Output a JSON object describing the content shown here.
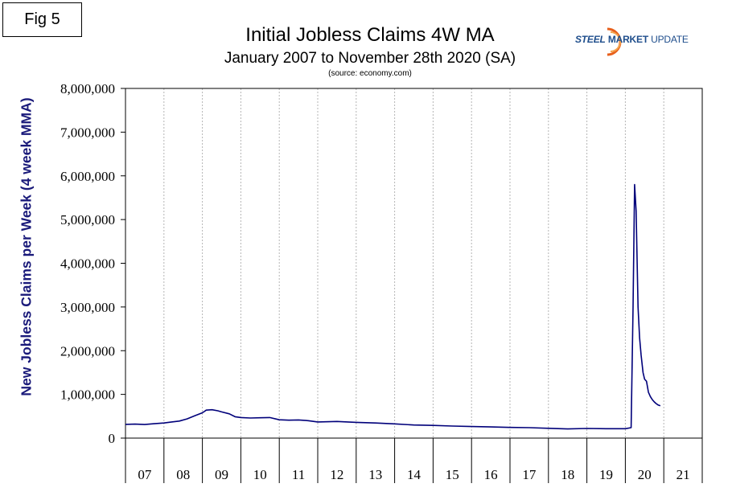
{
  "fig_label": "Fig 5",
  "logo": {
    "steel": "STEEL",
    "market": "MARKET",
    "update": "UPDATE"
  },
  "chart_data": {
    "type": "line",
    "title": "Initial Jobless Claims 4W MA",
    "subtitle": "January 2007 to November 28th 2020 (SA)",
    "source": "(source: economy.com)",
    "ylabel": "New Jobless Claims per Week (4 week MMA)",
    "xlabel": "",
    "ylim": [
      0,
      8000000
    ],
    "xlim": [
      2007.0,
      2022.0
    ],
    "grid": {
      "x": true,
      "y": false
    },
    "y_ticks": [
      0,
      1000000,
      2000000,
      3000000,
      4000000,
      5000000,
      6000000,
      7000000,
      8000000
    ],
    "y_tick_labels": [
      "0",
      "1,000,000",
      "2,000,000",
      "3,000,000",
      "4,000,000",
      "5,000,000",
      "6,000,000",
      "7,000,000",
      "8,000,000"
    ],
    "x_tick_labels": [
      "07",
      "08",
      "09",
      "10",
      "11",
      "12",
      "13",
      "14",
      "15",
      "16",
      "17",
      "18",
      "19",
      "20",
      "21"
    ],
    "line_color": "#00007a",
    "series": [
      {
        "x": [
          2007.0,
          2007.25,
          2007.5,
          2007.75,
          2008.0,
          2008.2,
          2008.4,
          2008.6,
          2008.8,
          2009.0,
          2009.1,
          2009.25,
          2009.4,
          2009.5,
          2009.7,
          2009.85,
          2010.0,
          2010.25,
          2010.5,
          2010.75,
          2011.0,
          2011.25,
          2011.5,
          2011.75,
          2012.0,
          2012.5,
          2013.0,
          2013.5,
          2014.0,
          2014.5,
          2015.0,
          2015.5,
          2016.0,
          2016.5,
          2017.0,
          2017.5,
          2018.0,
          2018.5,
          2019.0,
          2019.5,
          2020.0,
          2020.15,
          2020.2,
          2020.24,
          2020.28,
          2020.33,
          2020.37,
          2020.41,
          2020.46,
          2020.5,
          2020.55,
          2020.6,
          2020.65,
          2020.7,
          2020.75,
          2020.8,
          2020.85,
          2020.91
        ],
        "y": [
          315000,
          320000,
          310000,
          330000,
          345000,
          370000,
          390000,
          440000,
          510000,
          580000,
          640000,
          650000,
          625000,
          600000,
          555000,
          490000,
          470000,
          460000,
          465000,
          470000,
          420000,
          410000,
          415000,
          400000,
          370000,
          380000,
          360000,
          345000,
          325000,
          300000,
          290000,
          275000,
          265000,
          255000,
          245000,
          240000,
          225000,
          210000,
          220000,
          215000,
          215000,
          240000,
          3000000,
          5800000,
          5200000,
          3000000,
          2300000,
          1900000,
          1500000,
          1350000,
          1300000,
          1050000,
          950000,
          880000,
          830000,
          790000,
          760000,
          740000
        ]
      }
    ]
  }
}
